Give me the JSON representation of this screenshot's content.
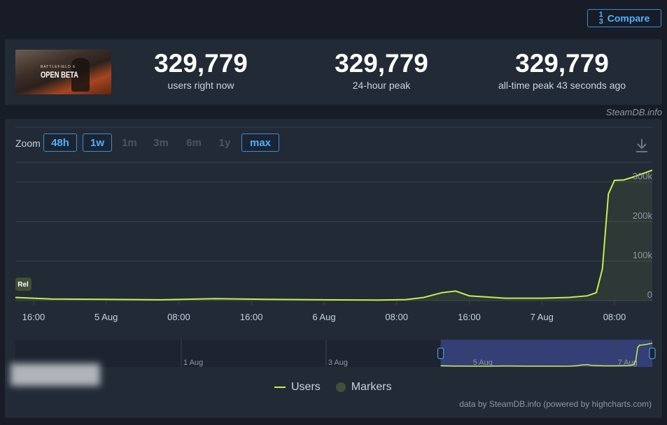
{
  "header": {
    "title": "",
    "compare_label": "Compare",
    "compare_icon": "1/3-icon"
  },
  "game_thumb": {
    "line1": "BATTLEFIELD 6",
    "line2": "OPEN BETA"
  },
  "stats": [
    {
      "value": "329,779",
      "label": "users right now"
    },
    {
      "value": "329,779",
      "label": "24-hour peak"
    },
    {
      "value": "329,779",
      "label": "all-time peak 43 seconds ago"
    }
  ],
  "source": "SteamDB.info",
  "zoom": {
    "label": "Zoom",
    "buttons": [
      {
        "label": "48h",
        "state": "active"
      },
      {
        "label": "1w",
        "state": "active"
      },
      {
        "label": "1m",
        "state": "disabled"
      },
      {
        "label": "3m",
        "state": "disabled"
      },
      {
        "label": "6m",
        "state": "disabled"
      },
      {
        "label": "1y",
        "state": "disabled"
      },
      {
        "label": "max",
        "state": "active"
      }
    ]
  },
  "legend": {
    "users": "Users",
    "markers": "Markers"
  },
  "credit": "data by SteamDB.info (powered by highcharts.com)",
  "colors": {
    "line": "#c5f04a",
    "accent": "#4fb0ff",
    "navigator_mask": "#3c4a8c"
  },
  "chart_data": {
    "type": "area",
    "series": [
      {
        "name": "Users",
        "x": [
          "2025-08-04 14:00",
          "2025-08-04 18:00",
          "2025-08-05 00:00",
          "2025-08-05 06:00",
          "2025-08-05 12:00",
          "2025-08-05 18:00",
          "2025-08-06 00:00",
          "2025-08-06 06:00",
          "2025-08-06 09:00",
          "2025-08-06 11:00",
          "2025-08-06 13:00",
          "2025-08-06 14:30",
          "2025-08-06 16:00",
          "2025-08-06 20:00",
          "2025-08-07 00:00",
          "2025-08-07 03:00",
          "2025-08-07 05:00",
          "2025-08-07 06:00",
          "2025-08-07 06:40",
          "2025-08-07 07:20",
          "2025-08-07 08:00",
          "2025-08-07 09:00",
          "2025-08-07 10:00",
          "2025-08-07 12:10"
        ],
        "y": [
          8000,
          4000,
          3000,
          2000,
          5000,
          3000,
          2000,
          1500,
          2500,
          8000,
          20000,
          24000,
          12000,
          6000,
          6000,
          8000,
          12000,
          20000,
          80000,
          270000,
          304000,
          305000,
          312000,
          329779
        ]
      }
    ],
    "x_ticks": [
      "16:00",
      "5 Aug",
      "08:00",
      "16:00",
      "6 Aug",
      "08:00",
      "16:00",
      "7 Aug",
      "08:00"
    ],
    "y_ticks": [
      "0",
      "100k",
      "200k",
      "300k"
    ],
    "ylim": [
      0,
      350000
    ],
    "grid": true,
    "marker": {
      "label": "Rel"
    },
    "navigator": {
      "labels": [
        "1 Aug",
        "3 Aug",
        "5 Aug",
        "7 Aug"
      ]
    },
    "legend_position": "bottom-center"
  }
}
